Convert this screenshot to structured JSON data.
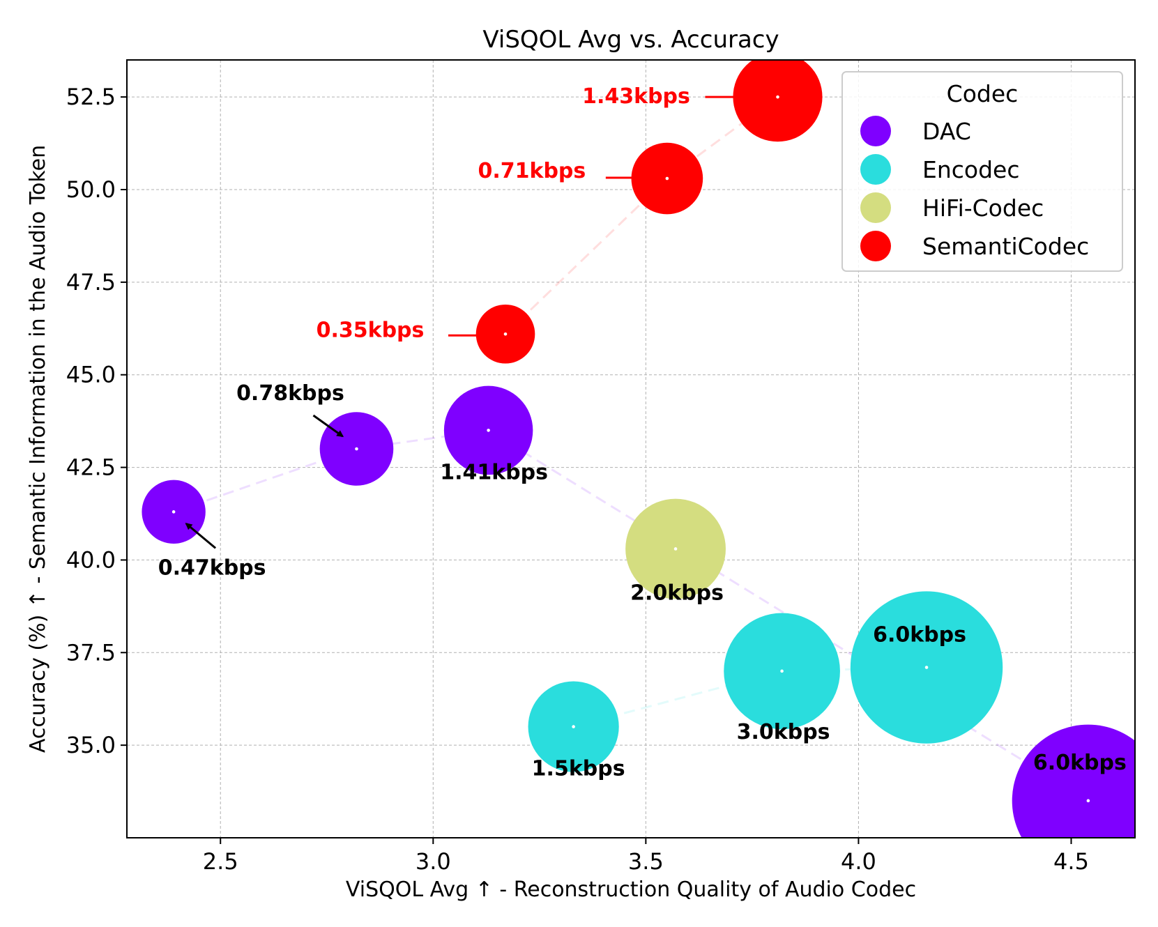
{
  "chart_data": {
    "type": "scatter",
    "title": "ViSQOL Avg vs. Accuracy",
    "xlabel": "ViSQOL Avg ↑ - Reconstruction Quality of Audio Codec",
    "ylabel": "Accuracy (%) ↑ - Semantic Information in the Audio Token",
    "xlim": [
      2.28,
      4.65
    ],
    "ylim": [
      32.5,
      53.5
    ],
    "xticks": [
      "2.5",
      "3.0",
      "3.5",
      "4.0",
      "4.5"
    ],
    "yticks": [
      "35.0",
      "37.5",
      "40.0",
      "42.5",
      "45.0",
      "47.5",
      "50.0",
      "52.5"
    ],
    "grid": true,
    "legend": {
      "title": "Codec",
      "position": "top-right",
      "entries": [
        "DAC",
        "Encodec",
        "HiFi-Codec",
        "SemantiCodec"
      ]
    },
    "colors": {
      "DAC": "#7f00ff",
      "Encodec": "#2adddd",
      "HiFi-Codec": "#d4dd80",
      "SemantiCodec": "#ff0000"
    },
    "series": [
      {
        "name": "DAC",
        "points": [
          {
            "x": 2.39,
            "y": 41.3,
            "bitrate_kbps": 0.47,
            "label": "0.47kbps"
          },
          {
            "x": 2.82,
            "y": 43.0,
            "bitrate_kbps": 0.78,
            "label": "0.78kbps"
          },
          {
            "x": 3.13,
            "y": 43.5,
            "bitrate_kbps": 1.41,
            "label": "1.41kbps"
          },
          {
            "x": 4.54,
            "y": 33.5,
            "bitrate_kbps": 6.0,
            "label": "6.0kbps"
          }
        ]
      },
      {
        "name": "Encodec",
        "points": [
          {
            "x": 3.33,
            "y": 35.5,
            "bitrate_kbps": 1.5,
            "label": "1.5kbps"
          },
          {
            "x": 3.82,
            "y": 37.0,
            "bitrate_kbps": 3.0,
            "label": "3.0kbps"
          },
          {
            "x": 4.16,
            "y": 37.1,
            "bitrate_kbps": 6.0,
            "label": "6.0kbps"
          }
        ]
      },
      {
        "name": "HiFi-Codec",
        "points": [
          {
            "x": 3.57,
            "y": 40.3,
            "bitrate_kbps": 2.0,
            "label": "2.0kbps"
          }
        ]
      },
      {
        "name": "SemantiCodec",
        "points": [
          {
            "x": 3.17,
            "y": 46.1,
            "bitrate_kbps": 0.35,
            "label": "0.35kbps"
          },
          {
            "x": 3.55,
            "y": 50.3,
            "bitrate_kbps": 0.71,
            "label": "0.71kbps"
          },
          {
            "x": 3.81,
            "y": 52.5,
            "bitrate_kbps": 1.43,
            "label": "1.43kbps"
          }
        ]
      }
    ]
  }
}
